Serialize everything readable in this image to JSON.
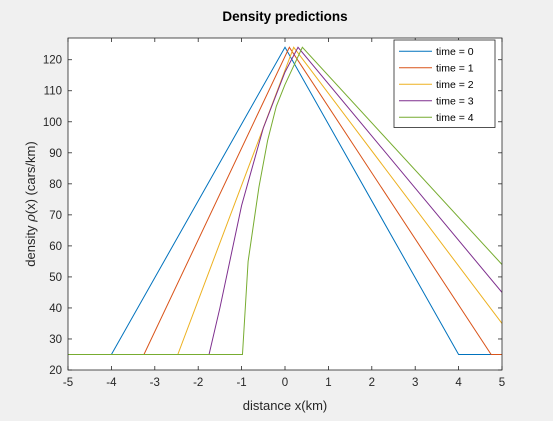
{
  "chart_data": {
    "type": "line",
    "title": "Density predictions",
    "xlabel": "distance x(km)",
    "ylabel_parts": [
      "density ",
      "ρ",
      "(x) (cars/km)"
    ],
    "xlim": [
      -5,
      5
    ],
    "ylim": [
      20,
      127
    ],
    "xticks": [
      -5,
      -4,
      -3,
      -2,
      -1,
      0,
      1,
      2,
      3,
      4,
      5
    ],
    "yticks": [
      20,
      30,
      40,
      50,
      60,
      70,
      80,
      90,
      100,
      110,
      120
    ],
    "grid": false,
    "legend_position": "top-right",
    "series": [
      {
        "name": "time = 0",
        "color": "#0072BD",
        "x": [
          -5,
          -4,
          0,
          4,
          5
        ],
        "y": [
          25,
          25,
          124,
          25,
          25
        ]
      },
      {
        "name": "time = 1",
        "color": "#D95319",
        "x": [
          -5,
          -3.25,
          0.1,
          4.75,
          5
        ],
        "y": [
          25,
          25,
          124,
          25,
          25
        ]
      },
      {
        "name": "time = 2",
        "color": "#EDB120",
        "x": [
          -5,
          -2.47,
          0.2,
          5
        ],
        "y": [
          25,
          25,
          124,
          35
        ]
      },
      {
        "name": "time = 3",
        "color": "#7E2F8E",
        "x": [
          -5,
          -1.75,
          -1.5,
          -1.0,
          -0.5,
          0,
          0.3,
          5
        ],
        "y": [
          25,
          25,
          40,
          73,
          98,
          116,
          124,
          45
        ]
      },
      {
        "name": "time = 4",
        "color": "#77AC30",
        "x": [
          -5,
          -0.98,
          -0.85,
          -0.6,
          -0.4,
          -0.2,
          0,
          0.2,
          0.4,
          5
        ],
        "y": [
          25,
          25,
          55,
          79,
          94,
          105,
          112,
          118,
          124,
          54
        ]
      }
    ]
  }
}
